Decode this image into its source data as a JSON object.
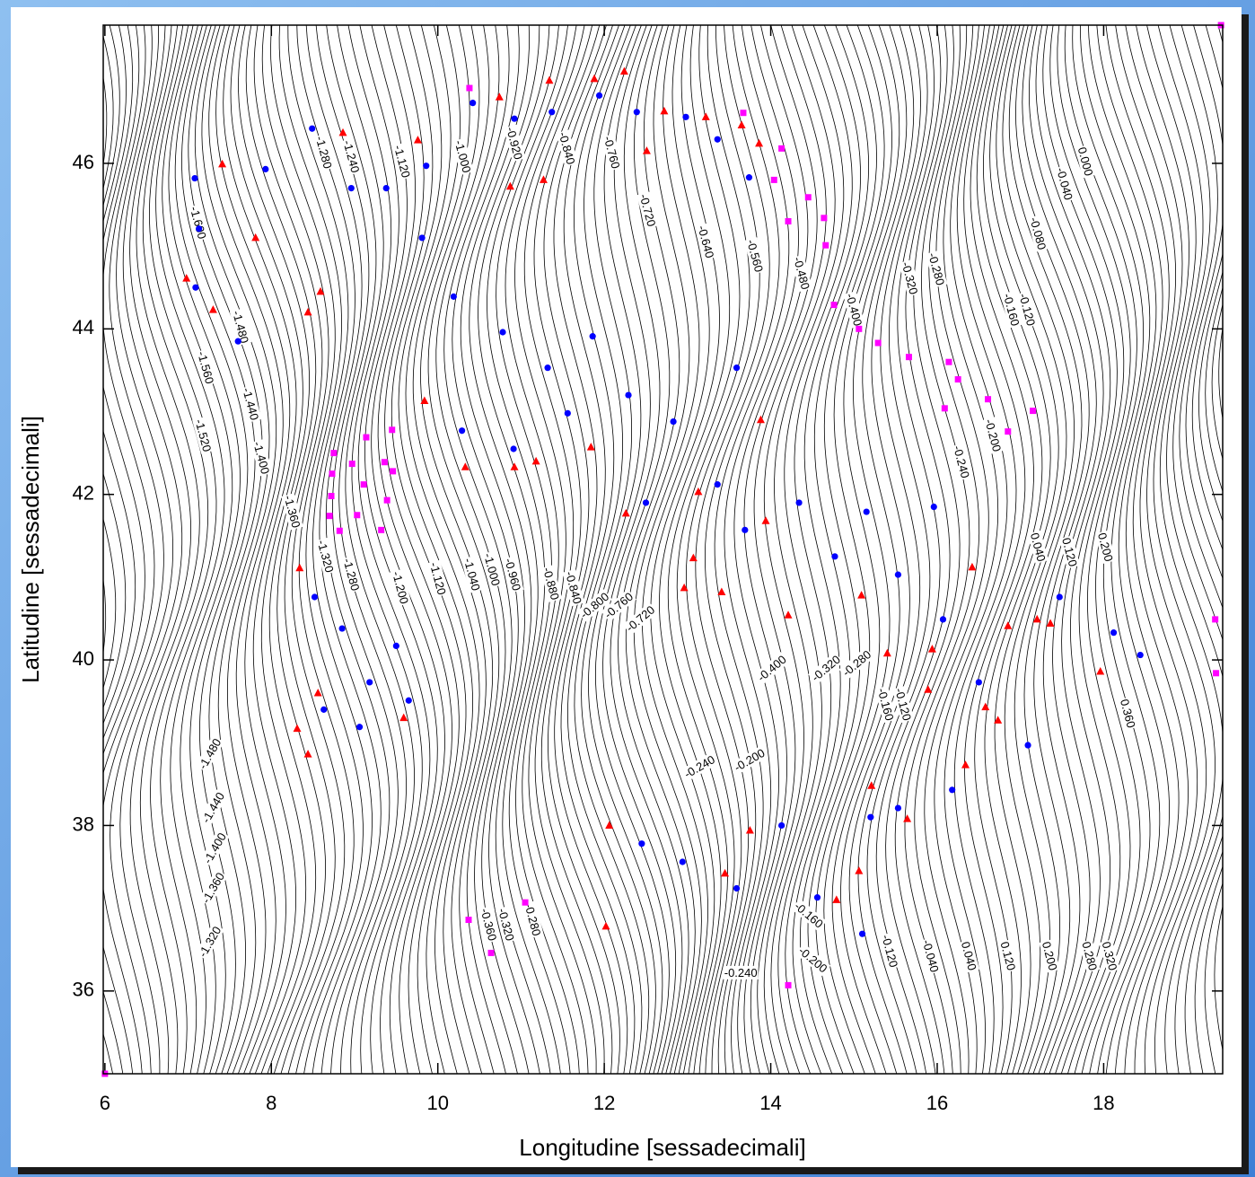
{
  "chart_data": {
    "type": "contour",
    "xlabel": "Longitudine [sessadecimali]",
    "ylabel": "Latitudine [sessadecimali]",
    "xlim": [
      5.98,
      19.43
    ],
    "ylim": [
      35.0,
      47.67
    ],
    "xticks": [
      6,
      8,
      10,
      12,
      14,
      16,
      18
    ],
    "yticks": [
      36,
      38,
      40,
      42,
      44,
      46
    ],
    "series": [
      {
        "marker": "circle",
        "color": "#0000ff",
        "x": [
          7.08,
          7.13,
          7.09,
          7.6,
          7.93,
          8.49,
          8.96,
          9.38,
          9.86,
          10.42,
          10.92,
          11.37,
          11.94,
          12.39,
          12.98,
          13.36,
          13.74,
          9.81,
          10.19,
          10.78,
          11.32,
          11.86,
          12.29,
          12.83,
          13.59,
          10.29,
          10.91,
          11.56,
          12.5,
          13.36,
          13.69,
          8.52,
          8.85,
          9.18,
          9.5,
          8.63,
          9.06,
          9.65,
          14.34,
          14.77,
          15.15,
          15.53,
          15.96,
          16.07,
          16.5,
          17.09,
          17.47,
          18.12,
          18.44,
          12.45,
          12.94,
          13.59,
          14.13,
          14.56,
          15.1,
          15.53,
          16.18,
          15.2
        ],
        "y": [
          45.82,
          45.21,
          44.5,
          43.85,
          45.93,
          46.42,
          45.7,
          45.7,
          45.97,
          46.73,
          46.54,
          46.62,
          46.82,
          46.62,
          46.56,
          46.29,
          45.83,
          45.1,
          44.39,
          43.96,
          43.53,
          43.91,
          43.2,
          42.88,
          43.53,
          42.77,
          42.55,
          42.98,
          41.9,
          42.12,
          41.57,
          40.76,
          40.38,
          39.73,
          40.17,
          39.4,
          39.19,
          39.51,
          41.9,
          41.25,
          41.79,
          41.03,
          41.85,
          40.49,
          39.73,
          38.97,
          40.76,
          40.33,
          40.06,
          37.78,
          37.56,
          37.24,
          38.0,
          37.13,
          36.69,
          38.21,
          38.43,
          38.1
        ]
      },
      {
        "marker": "triangle",
        "color": "#ff0000",
        "x": [
          7.41,
          6.98,
          7.3,
          7.81,
          8.44,
          8.59,
          8.86,
          9.76,
          10.74,
          11.34,
          11.88,
          12.24,
          12.72,
          13.22,
          13.65,
          13.86,
          12.51,
          10.87,
          11.27,
          9.84,
          10.33,
          10.92,
          11.18,
          11.84,
          12.26,
          13.13,
          13.07,
          12.96,
          13.41,
          14.21,
          13.94,
          13.88,
          8.34,
          8.56,
          8.31,
          8.44,
          9.59,
          12.06,
          12.02,
          13.45,
          13.75,
          15.09,
          15.4,
          15.94,
          15.89,
          16.58,
          16.34,
          15.21,
          15.64,
          16.73,
          16.42,
          16.85,
          17.2,
          17.36,
          17.96,
          15.06,
          14.79
        ],
        "y": [
          45.99,
          44.61,
          44.23,
          45.1,
          44.2,
          44.45,
          46.37,
          46.28,
          46.8,
          47.0,
          47.02,
          47.11,
          46.63,
          46.56,
          46.46,
          46.24,
          46.15,
          45.72,
          45.8,
          43.13,
          42.33,
          42.33,
          42.4,
          42.57,
          41.77,
          42.03,
          41.23,
          40.87,
          40.82,
          40.54,
          41.68,
          42.9,
          41.11,
          39.6,
          39.17,
          38.86,
          39.3,
          38.0,
          36.78,
          37.42,
          37.94,
          40.78,
          40.08,
          40.13,
          39.64,
          39.43,
          38.73,
          38.48,
          38.08,
          39.27,
          41.12,
          40.41,
          40.49,
          40.44,
          39.86,
          37.45,
          37.1
        ]
      },
      {
        "marker": "square",
        "color": "#ff00ff",
        "x": [
          19.41,
          10.38,
          13.67,
          14.13,
          14.04,
          14.45,
          14.21,
          14.64,
          14.66,
          14.76,
          15.06,
          15.29,
          15.66,
          16.14,
          16.25,
          16.09,
          16.61,
          17.15,
          16.85,
          19.34,
          19.35,
          14.21,
          10.64,
          11.05,
          10.37,
          6.0,
          8.75,
          9.14,
          9.45,
          8.97,
          9.36,
          8.73,
          9.46,
          9.11,
          9.39,
          8.72,
          9.03,
          8.7,
          8.82,
          9.32
        ],
        "y": [
          47.67,
          46.91,
          46.61,
          46.18,
          45.8,
          45.59,
          45.3,
          45.34,
          45.01,
          44.29,
          44.0,
          43.83,
          43.66,
          43.6,
          43.39,
          43.04,
          43.15,
          43.01,
          42.76,
          40.49,
          39.84,
          36.07,
          36.46,
          37.07,
          36.86,
          35.0,
          42.5,
          42.69,
          42.78,
          42.37,
          42.39,
          42.25,
          42.28,
          42.12,
          41.93,
          41.98,
          41.75,
          41.74,
          41.56,
          41.57
        ]
      }
    ],
    "contour_labels": [
      {
        "x": 8.62,
        "y": 46.13,
        "value": -1.28,
        "label": "-1.280"
      },
      {
        "x": 8.95,
        "y": 46.08,
        "value": -1.24,
        "label": "-1.240"
      },
      {
        "x": 9.56,
        "y": 46.02,
        "value": -1.12,
        "label": "-1.120"
      },
      {
        "x": 10.29,
        "y": 46.08,
        "value": -1.0,
        "label": "-1.000"
      },
      {
        "x": 10.91,
        "y": 46.24,
        "value": -0.92,
        "label": "-0.920"
      },
      {
        "x": 11.54,
        "y": 46.18,
        "value": -0.84,
        "label": "-0.840"
      },
      {
        "x": 12.08,
        "y": 46.13,
        "value": -0.76,
        "label": "-0.760"
      },
      {
        "x": 12.51,
        "y": 45.43,
        "value": -0.72,
        "label": "-0.720"
      },
      {
        "x": 13.21,
        "y": 45.05,
        "value": -0.64,
        "label": "-0.640"
      },
      {
        "x": 13.8,
        "y": 44.88,
        "value": -0.56,
        "label": "-0.560"
      },
      {
        "x": 14.36,
        "y": 44.67,
        "value": -0.48,
        "label": "-0.480"
      },
      {
        "x": 14.99,
        "y": 44.23,
        "value": -0.4,
        "label": "-0.400"
      },
      {
        "x": 15.66,
        "y": 44.61,
        "value": -0.32,
        "label": "-0.320"
      },
      {
        "x": 15.98,
        "y": 44.72,
        "value": -0.28,
        "label": "-0.280"
      },
      {
        "x": 16.88,
        "y": 44.23,
        "value": -0.16,
        "label": "-0.160"
      },
      {
        "x": 17.07,
        "y": 44.23,
        "value": -0.12,
        "label": "-0.120"
      },
      {
        "x": 17.2,
        "y": 45.15,
        "value": -0.08,
        "label": "-0.080"
      },
      {
        "x": 17.52,
        "y": 45.75,
        "value": -0.04,
        "label": "-0.040"
      },
      {
        "x": 17.77,
        "y": 46.02,
        "value": 0,
        "label": "0.000"
      },
      {
        "x": 7.11,
        "y": 45.28,
        "value": -1.6,
        "label": "-1.600"
      },
      {
        "x": 7.2,
        "y": 43.53,
        "value": -1.56,
        "label": "-1.560"
      },
      {
        "x": 7.17,
        "y": 42.71,
        "value": -1.52,
        "label": "-1.520"
      },
      {
        "x": 7.62,
        "y": 44.02,
        "value": -1.48,
        "label": "-1.480"
      },
      {
        "x": 7.74,
        "y": 43.09,
        "value": -1.44,
        "label": "-1.440"
      },
      {
        "x": 7.87,
        "y": 42.44,
        "value": -1.4,
        "label": "-1.400"
      },
      {
        "x": 8.24,
        "y": 41.79,
        "value": -1.36,
        "label": "-1.360"
      },
      {
        "x": 8.64,
        "y": 41.25,
        "value": -1.32,
        "label": "-1.320"
      },
      {
        "x": 8.95,
        "y": 41.03,
        "value": -1.28,
        "label": "-1.280"
      },
      {
        "x": 9.54,
        "y": 40.87,
        "value": -1.2,
        "label": "-1.200"
      },
      {
        "x": 9.99,
        "y": 40.98,
        "value": -1.12,
        "label": "-1.120"
      },
      {
        "x": 10.4,
        "y": 41.03,
        "value": -1.04,
        "label": "-1.040"
      },
      {
        "x": 10.64,
        "y": 41.09,
        "value": -1.0,
        "label": "-1.000"
      },
      {
        "x": 10.89,
        "y": 41.03,
        "value": -0.96,
        "label": "-0.960"
      },
      {
        "x": 11.35,
        "y": 40.92,
        "value": -0.88,
        "label": "-0.880"
      },
      {
        "x": 11.62,
        "y": 40.87,
        "value": -0.84,
        "label": "-0.840"
      },
      {
        "x": 11.89,
        "y": 40.65,
        "value": -0.8,
        "label": "-0.800"
      },
      {
        "x": 12.18,
        "y": 40.65,
        "value": -0.76,
        "label": "-0.760"
      },
      {
        "x": 12.44,
        "y": 40.49,
        "value": -0.72,
        "label": "-0.720"
      },
      {
        "x": 14.02,
        "y": 39.89,
        "value": -0.4,
        "label": "-0.400"
      },
      {
        "x": 14.67,
        "y": 39.89,
        "value": -0.32,
        "label": "-0.320"
      },
      {
        "x": 15.04,
        "y": 39.95,
        "value": -0.28,
        "label": "-0.280"
      },
      {
        "x": 15.37,
        "y": 39.46,
        "value": -0.16,
        "label": "-0.160"
      },
      {
        "x": 15.58,
        "y": 39.46,
        "value": -0.12,
        "label": "-0.120"
      },
      {
        "x": 16.28,
        "y": 42.39,
        "value": -0.24,
        "label": "-0.240"
      },
      {
        "x": 16.66,
        "y": 42.71,
        "value": -0.2,
        "label": "-0.200"
      },
      {
        "x": 17.2,
        "y": 41.36,
        "value": 0.04,
        "label": "0.040"
      },
      {
        "x": 17.58,
        "y": 41.3,
        "value": 0.12,
        "label": "0.120"
      },
      {
        "x": 18.01,
        "y": 41.36,
        "value": 0.2,
        "label": "0.200"
      },
      {
        "x": 18.28,
        "y": 39.35,
        "value": 0.36,
        "label": "0.360"
      },
      {
        "x": 7.27,
        "y": 38.86,
        "value": -1.48,
        "label": "-1.480"
      },
      {
        "x": 7.31,
        "y": 38.21,
        "value": -1.44,
        "label": "-1.440"
      },
      {
        "x": 7.33,
        "y": 37.72,
        "value": -1.4,
        "label": "-1.400"
      },
      {
        "x": 7.31,
        "y": 37.24,
        "value": -1.36,
        "label": "-1.360"
      },
      {
        "x": 7.27,
        "y": 36.59,
        "value": -1.32,
        "label": "-1.320"
      },
      {
        "x": 10.6,
        "y": 36.8,
        "value": -0.36,
        "label": "-0.360"
      },
      {
        "x": 10.81,
        "y": 36.8,
        "value": -0.32,
        "label": "-0.320"
      },
      {
        "x": 11.13,
        "y": 36.86,
        "value": -0.28,
        "label": "-0.280"
      },
      {
        "x": 13.15,
        "y": 38.7,
        "value": -0.24,
        "label": "-0.240"
      },
      {
        "x": 13.75,
        "y": 38.78,
        "value": -0.2,
        "label": "-0.200"
      },
      {
        "x": 13.64,
        "y": 36.21,
        "value": -0.24,
        "label": "-0.240"
      },
      {
        "x": 14.5,
        "y": 36.37,
        "value": -0.2,
        "label": "-0.200"
      },
      {
        "x": 14.45,
        "y": 36.91,
        "value": -0.16,
        "label": "-0.160"
      },
      {
        "x": 15.42,
        "y": 36.48,
        "value": -0.12,
        "label": "-0.120"
      },
      {
        "x": 15.91,
        "y": 36.42,
        "value": -0.04,
        "label": "-0.040"
      },
      {
        "x": 16.37,
        "y": 36.42,
        "value": 0.04,
        "label": "0.040"
      },
      {
        "x": 16.84,
        "y": 36.42,
        "value": 0.12,
        "label": "0.120"
      },
      {
        "x": 17.34,
        "y": 36.42,
        "value": 0.2,
        "label": "0.200"
      },
      {
        "x": 17.82,
        "y": 36.42,
        "value": 0.28,
        "label": "0.280"
      },
      {
        "x": 18.06,
        "y": 36.42,
        "value": 0.32,
        "label": "0.320"
      }
    ]
  }
}
